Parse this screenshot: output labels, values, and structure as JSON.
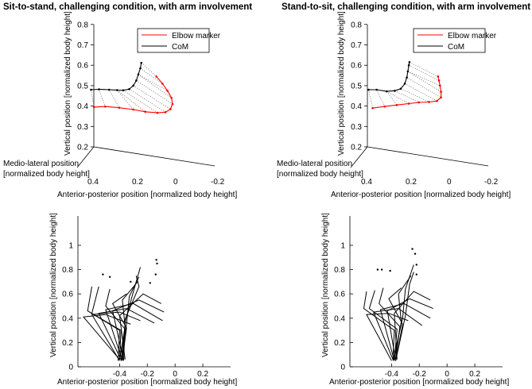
{
  "chart_data": [
    {
      "type": "line3d",
      "title": "Sit-to-stand, challenging condition, with arm involvement",
      "xlabel": "Anterior-posterior position [normalized body height]",
      "ylabel": "Medio-lateral position [normalized body height]",
      "zlabel": "Vertical position [normalized body height]",
      "x_ticks": [
        "0.4",
        "0.2",
        "0",
        "-0.2"
      ],
      "z_ticks": [
        "0.2",
        "0.3",
        "0.4",
        "0.5",
        "0.6",
        "0.7",
        "0.8"
      ],
      "legend": [
        "Elbow marker",
        "CoM"
      ],
      "colors": {
        "elbow": "#ff0000",
        "com": "#000000",
        "connect": "#555555"
      },
      "series": [
        {
          "name": "Elbow marker",
          "points": [
            [
              0.395,
              0.395
            ],
            [
              0.34,
              0.398
            ],
            [
              0.27,
              0.392
            ],
            [
              0.2,
              0.383
            ],
            [
              0.14,
              0.372
            ],
            [
              0.08,
              0.367
            ],
            [
              0.04,
              0.37
            ],
            [
              0.015,
              0.385
            ],
            [
              0.005,
              0.41
            ],
            [
              0.01,
              0.44
            ],
            [
              0.03,
              0.475
            ],
            [
              0.055,
              0.51
            ],
            [
              0.085,
              0.545
            ]
          ]
        },
        {
          "name": "CoM",
          "points": [
            [
              0.41,
              0.48
            ],
            [
              0.37,
              0.482
            ],
            [
              0.32,
              0.48
            ],
            [
              0.28,
              0.478
            ],
            [
              0.25,
              0.477
            ],
            [
              0.22,
              0.483
            ],
            [
              0.2,
              0.5
            ],
            [
              0.185,
              0.525
            ],
            [
              0.175,
              0.555
            ],
            [
              0.165,
              0.585
            ],
            [
              0.16,
              0.612
            ]
          ]
        }
      ]
    },
    {
      "type": "line3d",
      "title": "Stand-to-sit, challenging condition, with arm involvement",
      "xlabel": "Anterior-posterior position [normalized body height]",
      "ylabel": "Medio-lateral position [normalized body height]",
      "zlabel": "Vertical position [normalized body height]",
      "x_ticks": [
        "0.4",
        "0.2",
        "0",
        "-0.2"
      ],
      "z_ticks": [
        "0.2",
        "0.3",
        "0.4",
        "0.5",
        "0.6",
        "0.7",
        "0.8"
      ],
      "legend": [
        "Elbow marker",
        "CoM"
      ],
      "colors": {
        "elbow": "#ff0000",
        "com": "#000000",
        "connect": "#555555"
      },
      "series": [
        {
          "name": "Elbow marker",
          "points": [
            [
              0.37,
              0.39
            ],
            [
              0.31,
              0.398
            ],
            [
              0.25,
              0.405
            ],
            [
              0.19,
              0.412
            ],
            [
              0.14,
              0.418
            ],
            [
              0.09,
              0.42
            ],
            [
              0.05,
              0.425
            ],
            [
              0.03,
              0.442
            ],
            [
              0.03,
              0.47
            ],
            [
              0.035,
              0.5
            ],
            [
              0.04,
              0.525
            ],
            [
              0.045,
              0.545
            ]
          ]
        },
        {
          "name": "CoM",
          "points": [
            [
              0.39,
              0.48
            ],
            [
              0.35,
              0.48
            ],
            [
              0.3,
              0.472
            ],
            [
              0.26,
              0.475
            ],
            [
              0.23,
              0.485
            ],
            [
              0.21,
              0.51
            ],
            [
              0.2,
              0.54
            ],
            [
              0.195,
              0.57
            ],
            [
              0.19,
              0.6
            ],
            [
              0.187,
              0.615
            ]
          ]
        }
      ]
    },
    {
      "type": "line",
      "title": "",
      "xlabel": "Anterior-posterior position [normalized body height]",
      "ylabel": "Vertical position [normalized body height]",
      "x_ticks": [
        "-0.4",
        "-0.2",
        "0",
        "0.2"
      ],
      "y_ticks": [
        "0",
        "0.2",
        "0.4",
        "0.6",
        "0.8",
        "1"
      ],
      "xlim": [
        -0.7,
        0.4
      ],
      "ylim": [
        0,
        1.25
      ],
      "segments": [
        [
          [
            -0.41,
            0.05
          ],
          [
            -0.4,
            0.3
          ],
          [
            -0.63,
            0.46
          ],
          [
            -0.6,
            0.66
          ]
        ],
        [
          [
            -0.4,
            0.06
          ],
          [
            -0.39,
            0.3
          ],
          [
            -0.6,
            0.44
          ],
          [
            -0.55,
            0.66
          ]
        ],
        [
          [
            -0.39,
            0.05
          ],
          [
            -0.36,
            0.31
          ],
          [
            -0.5,
            0.5
          ],
          [
            -0.47,
            0.64
          ]
        ],
        [
          [
            -0.38,
            0.06
          ],
          [
            -0.35,
            0.32
          ],
          [
            -0.45,
            0.52
          ],
          [
            -0.35,
            0.6
          ]
        ],
        [
          [
            -0.4,
            0.06
          ],
          [
            -0.36,
            0.33
          ],
          [
            -0.38,
            0.55
          ],
          [
            -0.27,
            0.7
          ]
        ],
        [
          [
            -0.39,
            0.05
          ],
          [
            -0.35,
            0.35
          ],
          [
            -0.33,
            0.58
          ],
          [
            -0.26,
            0.74
          ]
        ],
        [
          [
            -0.38,
            0.05
          ],
          [
            -0.36,
            0.37
          ],
          [
            -0.3,
            0.62
          ],
          [
            -0.25,
            0.82
          ]
        ],
        [
          [
            -0.37,
            0.06
          ],
          [
            -0.36,
            0.39
          ],
          [
            -0.26,
            0.66
          ],
          [
            -0.28,
            0.75
          ]
        ],
        [
          [
            -0.36,
            0.06
          ],
          [
            -0.4,
            0.42
          ],
          [
            -0.23,
            0.6
          ],
          [
            -0.1,
            0.52
          ]
        ],
        [
          [
            -0.37,
            0.05
          ],
          [
            -0.45,
            0.46
          ],
          [
            -0.26,
            0.55
          ],
          [
            -0.08,
            0.45
          ]
        ],
        [
          [
            -0.38,
            0.05
          ],
          [
            -0.5,
            0.47
          ],
          [
            -0.3,
            0.52
          ],
          [
            -0.09,
            0.38
          ]
        ],
        [
          [
            -0.39,
            0.06
          ],
          [
            -0.55,
            0.44
          ],
          [
            -0.35,
            0.48
          ],
          [
            -0.15,
            0.36
          ]
        ],
        [
          [
            -0.4,
            0.05
          ],
          [
            -0.6,
            0.43
          ],
          [
            -0.4,
            0.45
          ],
          [
            -0.25,
            0.38
          ]
        ],
        [
          [
            -0.4,
            0.06
          ],
          [
            -0.66,
            0.41
          ],
          [
            -0.5,
            0.43
          ],
          [
            -0.32,
            0.35
          ]
        ]
      ],
      "dots": [
        [
          -0.52,
          0.76
        ],
        [
          -0.47,
          0.74
        ],
        [
          -0.32,
          0.7
        ],
        [
          -0.18,
          0.69
        ],
        [
          -0.14,
          0.76
        ],
        [
          -0.13,
          0.85
        ],
        [
          -0.135,
          0.88
        ]
      ]
    },
    {
      "type": "line",
      "title": "",
      "xlabel": "Anterior-posterior position [normalized body height]",
      "ylabel": "Vertical position [normalized body height]",
      "x_ticks": [
        "-0.4",
        "-0.2",
        "0",
        "0.2"
      ],
      "y_ticks": [
        "0",
        "0.2",
        "0.4",
        "0.6",
        "0.8",
        "1"
      ],
      "xlim": [
        -0.7,
        0.4
      ],
      "ylim": [
        0,
        1.25
      ],
      "segments": [
        [
          [
            -0.39,
            0.06
          ],
          [
            -0.38,
            0.3
          ],
          [
            -0.6,
            0.48
          ],
          [
            -0.58,
            0.62
          ]
        ],
        [
          [
            -0.38,
            0.05
          ],
          [
            -0.36,
            0.31
          ],
          [
            -0.56,
            0.48
          ],
          [
            -0.52,
            0.63
          ]
        ],
        [
          [
            -0.37,
            0.06
          ],
          [
            -0.34,
            0.33
          ],
          [
            -0.49,
            0.52
          ],
          [
            -0.46,
            0.65
          ]
        ],
        [
          [
            -0.37,
            0.05
          ],
          [
            -0.32,
            0.35
          ],
          [
            -0.42,
            0.56
          ],
          [
            -0.33,
            0.65
          ]
        ],
        [
          [
            -0.38,
            0.06
          ],
          [
            -0.33,
            0.37
          ],
          [
            -0.35,
            0.6
          ],
          [
            -0.26,
            0.75
          ]
        ],
        [
          [
            -0.39,
            0.05
          ],
          [
            -0.32,
            0.4
          ],
          [
            -0.3,
            0.64
          ],
          [
            -0.24,
            0.84
          ]
        ],
        [
          [
            -0.37,
            0.05
          ],
          [
            -0.3,
            0.42
          ],
          [
            -0.27,
            0.68
          ],
          [
            -0.24,
            0.78
          ]
        ],
        [
          [
            -0.36,
            0.06
          ],
          [
            -0.38,
            0.44
          ],
          [
            -0.24,
            0.62
          ],
          [
            -0.12,
            0.55
          ]
        ],
        [
          [
            -0.37,
            0.05
          ],
          [
            -0.43,
            0.46
          ],
          [
            -0.27,
            0.56
          ],
          [
            -0.1,
            0.48
          ]
        ],
        [
          [
            -0.38,
            0.05
          ],
          [
            -0.48,
            0.47
          ],
          [
            -0.31,
            0.52
          ],
          [
            -0.12,
            0.4
          ]
        ],
        [
          [
            -0.39,
            0.06
          ],
          [
            -0.53,
            0.45
          ],
          [
            -0.35,
            0.48
          ],
          [
            -0.18,
            0.34
          ]
        ],
        [
          [
            -0.4,
            0.05
          ],
          [
            -0.58,
            0.43
          ],
          [
            -0.42,
            0.44
          ],
          [
            -0.28,
            0.38
          ]
        ]
      ],
      "dots": [
        [
          -0.5,
          0.8
        ],
        [
          -0.47,
          0.8
        ],
        [
          -0.41,
          0.79
        ],
        [
          -0.25,
          0.97
        ],
        [
          -0.23,
          0.93
        ],
        [
          -0.22,
          0.84
        ],
        [
          -0.22,
          0.76
        ]
      ]
    }
  ]
}
